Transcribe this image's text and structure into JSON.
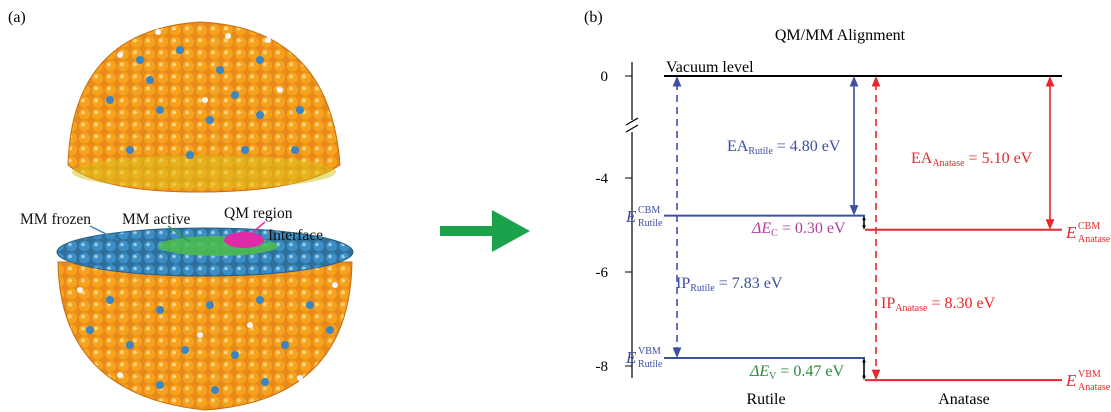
{
  "panel_a": {
    "label": "(a)",
    "callouts": [
      "MM frozen",
      "MM active",
      "QM region",
      "Interface"
    ]
  },
  "panel_b": {
    "label": "(b)",
    "title": "QM/MM Alignment",
    "vacuum_label": "Vacuum level",
    "y_ticks": [
      "0",
      "-4",
      "-6",
      "-8"
    ],
    "x_labels": [
      "Rutile",
      "Anatase"
    ],
    "energies": {
      "rutile_cbm": -4.8,
      "rutile_vbm": -7.83,
      "anatase_cbm": -5.1,
      "anatase_vbm": -8.3
    },
    "ea_rutile": {
      "main": "EA",
      "sub": "Rutile",
      "value": " = 4.80 eV"
    },
    "ea_anatase": {
      "main": "EA",
      "sub": "Anatase",
      "value": " = 5.10 eV"
    },
    "ip_rutile": {
      "main": "IP",
      "sub": "Rutile",
      "value": " = 7.83 eV"
    },
    "ip_anatase": {
      "main": "IP",
      "sub": "Anatase",
      "value": " = 8.30 eV"
    },
    "delta_c": {
      "main": "ΔE",
      "sub": "C",
      "value": " = 0.30 eV"
    },
    "delta_v": {
      "main": "ΔE",
      "sub": "V",
      "value": " = 0.47 eV"
    },
    "e_cbm_rutile": {
      "main": "E",
      "sup": "CBM",
      "sub": "Rutile"
    },
    "e_vbm_rutile": {
      "main": "E",
      "sup": "VBM",
      "sub": "Rutile"
    },
    "e_cbm_anatase": {
      "main": "E",
      "sup": "CBM",
      "sub": "Anatase"
    },
    "e_vbm_anatase": {
      "main": "E",
      "sup": "VBM",
      "sub": "Anatase"
    },
    "colors": {
      "rutile": "#3b4fa3",
      "anatase": "#e8262c",
      "delta_c": "#b03fa0",
      "delta_v": "#2a8a3a",
      "arrow": "#1aa34a"
    }
  }
}
